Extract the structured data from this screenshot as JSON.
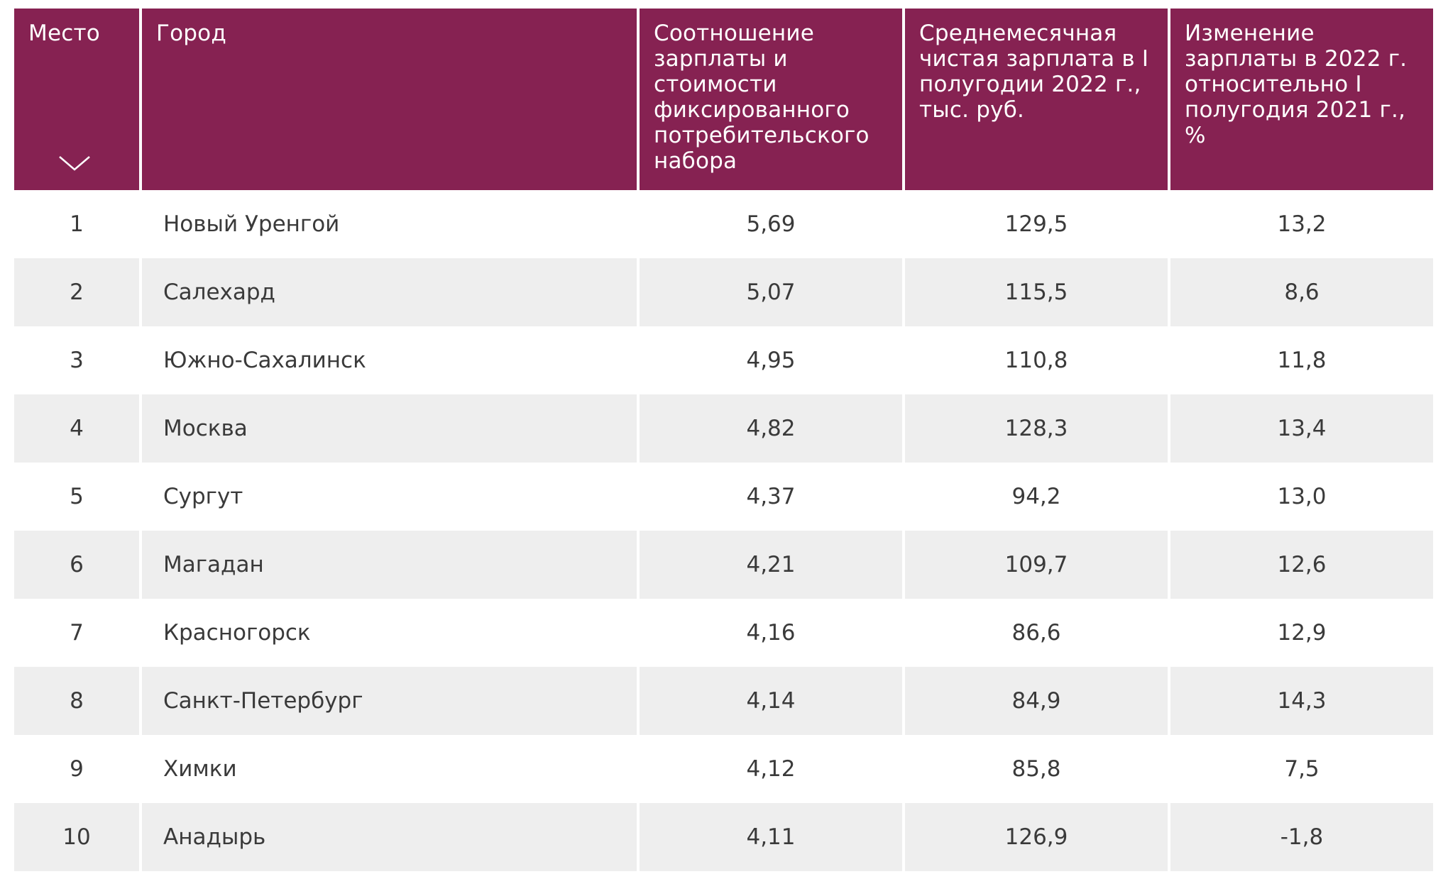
{
  "table": {
    "headers": [
      "Место",
      "Город",
      "Соотношение зарплаты и стоимости фиксированного потребительского набора",
      "Среднемесячная чистая зарплата в I полугодии 2022 г., тыс. руб.",
      "Изменение зарплаты в 2022 г. относительно I полугодия 2021 г., %"
    ],
    "sort_icon": "chevron-down-icon",
    "rows": [
      [
        "1",
        "Новый Уренгой",
        "5,69",
        "129,5",
        "13,2"
      ],
      [
        "2",
        "Салехард",
        "5,07",
        "115,5",
        "8,6"
      ],
      [
        "3",
        "Южно-Сахалинск",
        "4,95",
        "110,8",
        "11,8"
      ],
      [
        "4",
        "Москва",
        "4,82",
        "128,3",
        "13,4"
      ],
      [
        "5",
        "Сургут",
        "4,37",
        "94,2",
        "13,0"
      ],
      [
        "6",
        "Магадан",
        "4,21",
        "109,7",
        "12,6"
      ],
      [
        "7",
        "Красногорск",
        "4,16",
        "86,6",
        "12,9"
      ],
      [
        "8",
        "Санкт-Петербург",
        "4,14",
        "84,9",
        "14,3"
      ],
      [
        "9",
        "Химки",
        "4,12",
        "85,8",
        "7,5"
      ],
      [
        "10",
        "Анадырь",
        "4,11",
        "126,9",
        "-1,8"
      ]
    ]
  },
  "colors": {
    "header_bg": "#862252",
    "header_text": "#ffffff",
    "row_alt_bg": "#eeeeee",
    "cell_text": "#3a3a3a"
  }
}
